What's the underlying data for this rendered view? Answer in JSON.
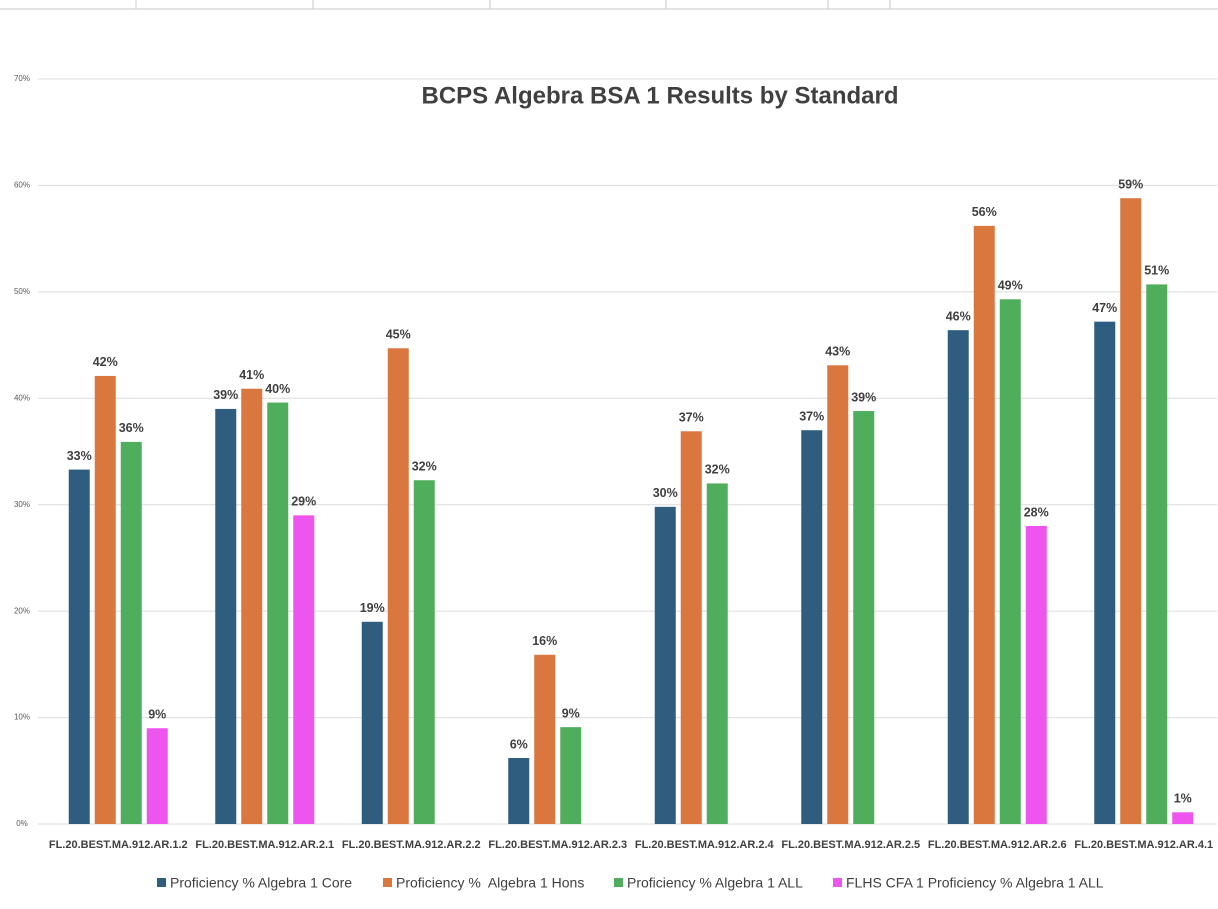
{
  "chart_data": {
    "type": "bar",
    "title": "BCPS Algebra BSA 1 Results by Standard",
    "categories": [
      "FL.20.BEST.MA.912.AR.1.2",
      "FL.20.BEST.MA.912.AR.2.1",
      "FL.20.BEST.MA.912.AR.2.2",
      "FL.20.BEST.MA.912.AR.2.3",
      "FL.20.BEST.MA.912.AR.2.4",
      "FL.20.BEST.MA.912.AR.2.5",
      "FL.20.BEST.MA.912.AR.2.6",
      "FL.20.BEST.MA.912.AR.4.1"
    ],
    "series": [
      {
        "name": "Proficiency % Algebra 1 Core",
        "color": "#2e5d80",
        "values": [
          33.3,
          39,
          19,
          6.2,
          29.8,
          37,
          46.4,
          47.2
        ],
        "value_labels": [
          "33%",
          "39%",
          "19%",
          "6%",
          "30%",
          "37%",
          "46%",
          "47%"
        ]
      },
      {
        "name": "Proficiency %  Algebra 1 Hons",
        "color": "#d9773f",
        "values": [
          42.1,
          40.9,
          44.7,
          15.9,
          36.9,
          43.1,
          56.2,
          58.8
        ],
        "value_labels": [
          "42%",
          "41%",
          "45%",
          "16%",
          "37%",
          "43%",
          "56%",
          "59%"
        ]
      },
      {
        "name": "Proficiency % Algebra 1 ALL",
        "color": "#4fae5b",
        "values": [
          35.9,
          39.6,
          32.3,
          9.1,
          32,
          38.8,
          49.3,
          50.7
        ],
        "value_labels": [
          "36%",
          "40%",
          "32%",
          "9%",
          "32%",
          "39%",
          "49%",
          "51%"
        ]
      },
      {
        "name": "FLHS CFA 1 Proficiency % Algebra 1 ALL",
        "color": "#ee55ee",
        "values": [
          9,
          29,
          null,
          null,
          null,
          null,
          28,
          1.1
        ],
        "value_labels": [
          "9%",
          "29%",
          null,
          null,
          null,
          null,
          "28%",
          "1%"
        ]
      }
    ],
    "ylim": [
      0,
      70
    ],
    "yticks": [
      {
        "value": 0,
        "label": "0%"
      },
      {
        "value": 10,
        "label": "10%"
      },
      {
        "value": 20,
        "label": "20%"
      },
      {
        "value": 30,
        "label": "30%"
      },
      {
        "value": 40,
        "label": "40%"
      },
      {
        "value": 50,
        "label": "50%"
      },
      {
        "value": 60,
        "label": "60%"
      },
      {
        "value": 70,
        "label": "70%"
      }
    ],
    "grid": true
  }
}
